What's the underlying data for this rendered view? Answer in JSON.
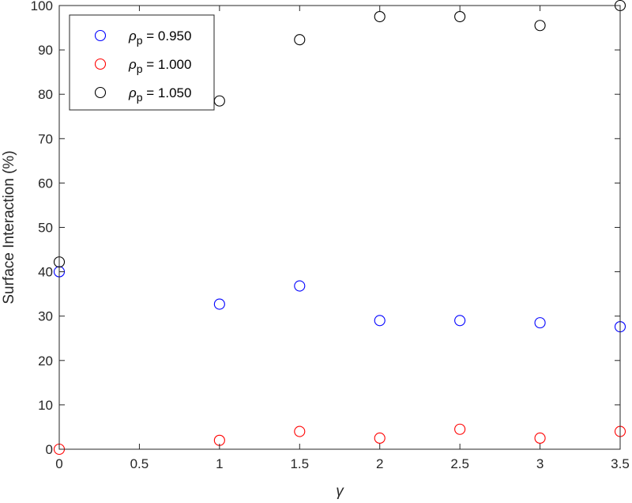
{
  "chart_data": {
    "type": "scatter",
    "xlabel": "γ",
    "ylabel": "Surface Interaction (%)",
    "xlim": [
      0,
      3.5
    ],
    "ylim": [
      0,
      100
    ],
    "x_ticks": [
      "0",
      "0.5",
      "1",
      "1.5",
      "2",
      "2.5",
      "3",
      "3.5"
    ],
    "y_ticks": [
      "0",
      "10",
      "20",
      "30",
      "40",
      "50",
      "60",
      "70",
      "80",
      "90",
      "100"
    ],
    "grid": false,
    "legend_position": "top-left",
    "marker": "open-circle",
    "series": [
      {
        "name_symbol": "ρ",
        "name_subscript": "p",
        "name_value": " = 0.950",
        "color": "#0000ff",
        "x": [
          0,
          1,
          1.5,
          2,
          2.5,
          3,
          3.5
        ],
        "y": [
          40,
          32.7,
          36.8,
          29,
          29,
          28.5,
          27.6
        ]
      },
      {
        "name_symbol": "ρ",
        "name_subscript": "p",
        "name_value": " = 1.000",
        "color": "#ff0000",
        "x": [
          0,
          1,
          1.5,
          2,
          2.5,
          3,
          3.5
        ],
        "y": [
          0,
          2,
          4,
          2.5,
          4.5,
          2.5,
          4
        ]
      },
      {
        "name_symbol": "ρ",
        "name_subscript": "p",
        "name_value": " = 1.050",
        "color": "#000000",
        "x": [
          0,
          1,
          1.5,
          2,
          2.5,
          3,
          3.5
        ],
        "y": [
          42.2,
          78.5,
          92.3,
          97.5,
          97.5,
          95.5,
          100
        ]
      }
    ]
  }
}
